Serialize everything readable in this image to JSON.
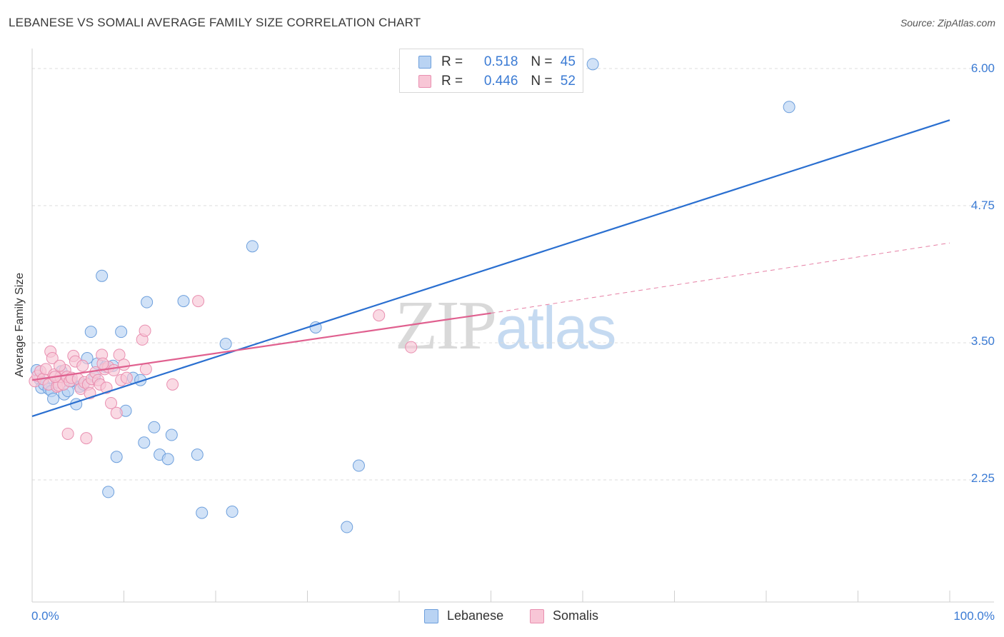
{
  "title": "LEBANESE VS SOMALI AVERAGE FAMILY SIZE CORRELATION CHART",
  "source": "Source: ZipAtlas.com",
  "watermark": {
    "zip": "ZIP",
    "atlas": "atlas"
  },
  "colors": {
    "lebanese_fill": "#b9d3f3",
    "lebanese_stroke": "#6d9fdc",
    "lebanese_line": "#2a6fd0",
    "somali_fill": "#f8c6d6",
    "somali_stroke": "#e98fb0",
    "somali_line": "#e0608f",
    "grid": "#dcdcdc",
    "tick_text": "#3b7bd4"
  },
  "legend_top": [
    {
      "r_label": "R =",
      "r_value": "0.518",
      "n_label": "N =",
      "n_value": "45"
    },
    {
      "r_label": "R =",
      "r_value": "0.446",
      "n_label": "N =",
      "n_value": "52"
    }
  ],
  "legend_bottom": [
    {
      "label": "Lebanese"
    },
    {
      "label": "Somalis"
    }
  ],
  "chart_data": {
    "type": "scatter",
    "title": "LEBANESE VS SOMALI AVERAGE FAMILY SIZE CORRELATION CHART",
    "xlabel": "",
    "ylabel": "Average Family Size",
    "xlim": [
      0,
      100
    ],
    "ylim": [
      1.0,
      6.1
    ],
    "x_tick_labels": [
      "0.0%",
      "100.0%"
    ],
    "y_ticks": [
      2.25,
      3.5,
      4.75,
      6.0
    ],
    "y_tick_labels": [
      "2.25",
      "3.50",
      "4.75",
      "6.00"
    ],
    "grid": true,
    "series": [
      {
        "name": "Lebanese",
        "r": 0.518,
        "n": 45,
        "trend": {
          "x0": 0,
          "y0": 2.83,
          "x1": 100,
          "y1": 5.53
        },
        "points": [
          [
            0.5,
            3.25
          ],
          [
            0.8,
            3.17
          ],
          [
            1.0,
            3.09
          ],
          [
            1.3,
            3.12
          ],
          [
            1.8,
            3.08
          ],
          [
            2.1,
            3.06
          ],
          [
            2.3,
            2.99
          ],
          [
            2.7,
            3.14
          ],
          [
            3.2,
            3.24
          ],
          [
            3.5,
            3.03
          ],
          [
            3.9,
            3.06
          ],
          [
            4.3,
            3.15
          ],
          [
            4.8,
            2.94
          ],
          [
            5.2,
            3.1
          ],
          [
            5.6,
            3.12
          ],
          [
            6.0,
            3.36
          ],
          [
            6.4,
            3.6
          ],
          [
            6.8,
            3.19
          ],
          [
            7.1,
            3.31
          ],
          [
            7.6,
            4.11
          ],
          [
            8.0,
            3.28
          ],
          [
            8.3,
            2.14
          ],
          [
            8.8,
            3.29
          ],
          [
            9.7,
            3.6
          ],
          [
            10.2,
            2.88
          ],
          [
            11.0,
            3.18
          ],
          [
            11.8,
            3.16
          ],
          [
            12.5,
            3.87
          ],
          [
            13.3,
            2.73
          ],
          [
            13.9,
            2.48
          ],
          [
            14.8,
            2.44
          ],
          [
            16.5,
            3.88
          ],
          [
            18.0,
            2.48
          ],
          [
            18.5,
            1.95
          ],
          [
            21.1,
            3.49
          ],
          [
            21.8,
            1.96
          ],
          [
            24.0,
            4.38
          ],
          [
            30.9,
            3.64
          ],
          [
            34.3,
            1.82
          ],
          [
            35.6,
            2.38
          ],
          [
            82.5,
            5.65
          ],
          [
            61.1,
            6.04
          ],
          [
            15.2,
            2.66
          ],
          [
            9.2,
            2.46
          ],
          [
            12.2,
            2.59
          ]
        ]
      },
      {
        "name": "Somalis",
        "r": 0.446,
        "n": 52,
        "trend": {
          "x0": 0,
          "y0": 3.16,
          "x1": 50,
          "y1": 3.77
        },
        "trend_dashed": {
          "x0": 50,
          "y0": 3.77,
          "x1": 100,
          "y1": 4.41
        },
        "points": [
          [
            0.3,
            3.15
          ],
          [
            0.6,
            3.2
          ],
          [
            0.9,
            3.24
          ],
          [
            1.2,
            3.17
          ],
          [
            1.5,
            3.26
          ],
          [
            1.8,
            3.12
          ],
          [
            2.0,
            3.42
          ],
          [
            2.2,
            3.36
          ],
          [
            2.4,
            3.21
          ],
          [
            2.7,
            3.1
          ],
          [
            2.9,
            3.11
          ],
          [
            3.1,
            3.19
          ],
          [
            3.4,
            3.12
          ],
          [
            3.6,
            3.25
          ],
          [
            3.8,
            3.19
          ],
          [
            3.9,
            2.67
          ],
          [
            4.1,
            3.15
          ],
          [
            4.3,
            3.18
          ],
          [
            4.5,
            3.38
          ],
          [
            4.7,
            3.33
          ],
          [
            5.0,
            3.17
          ],
          [
            5.3,
            3.08
          ],
          [
            5.5,
            3.29
          ],
          [
            5.7,
            3.14
          ],
          [
            5.9,
            2.63
          ],
          [
            6.1,
            3.12
          ],
          [
            6.3,
            3.04
          ],
          [
            6.5,
            3.17
          ],
          [
            6.9,
            3.23
          ],
          [
            7.2,
            3.16
          ],
          [
            7.4,
            3.12
          ],
          [
            7.6,
            3.39
          ],
          [
            7.9,
            3.26
          ],
          [
            8.1,
            3.09
          ],
          [
            8.3,
            3.28
          ],
          [
            8.6,
            2.95
          ],
          [
            8.9,
            3.25
          ],
          [
            9.2,
            2.86
          ],
          [
            9.5,
            3.39
          ],
          [
            9.7,
            3.16
          ],
          [
            10.0,
            3.3
          ],
          [
            10.3,
            3.18
          ],
          [
            12.0,
            3.53
          ],
          [
            12.3,
            3.61
          ],
          [
            12.4,
            3.26
          ],
          [
            15.3,
            3.12
          ],
          [
            18.1,
            3.88
          ],
          [
            37.8,
            3.75
          ],
          [
            41.3,
            3.46
          ],
          [
            3.0,
            3.29
          ],
          [
            7.7,
            3.31
          ],
          [
            2.5,
            3.19
          ]
        ]
      }
    ]
  }
}
